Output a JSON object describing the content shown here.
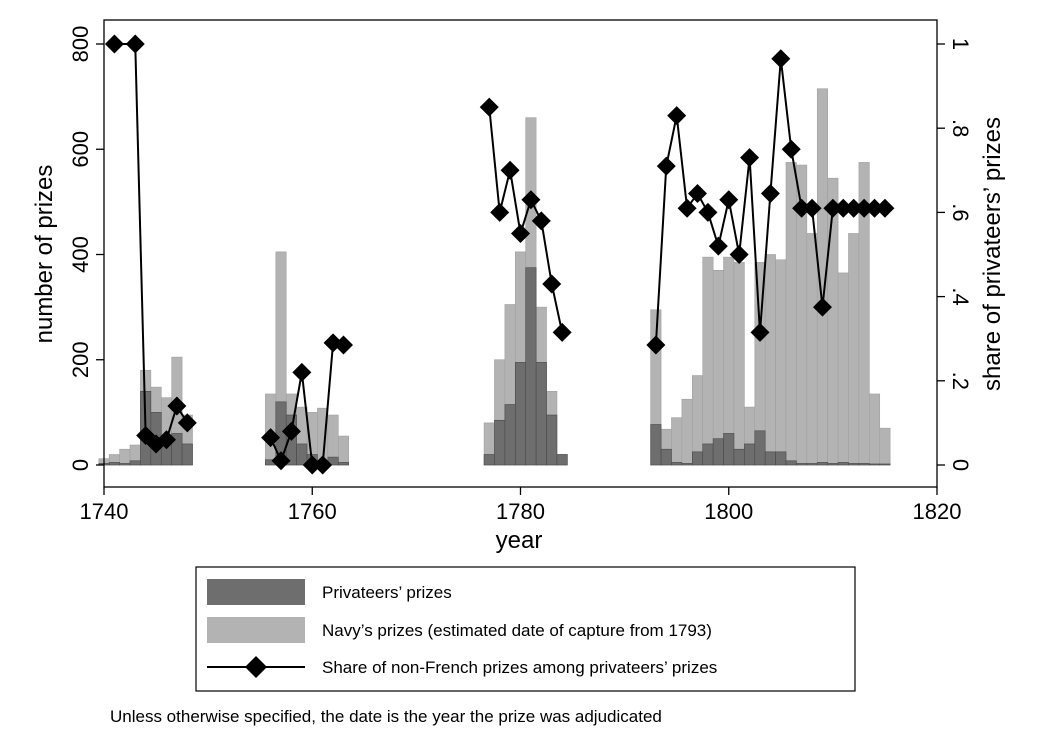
{
  "chart_data": {
    "type": "bar",
    "xlabel": "year",
    "ylabel": "number of prizes",
    "y2label": "share of privateers’ prizes",
    "xlim": [
      1740,
      1820
    ],
    "ylim": [
      0,
      800
    ],
    "y2lim": [
      0,
      1
    ],
    "xticks": [
      "1740",
      "1760",
      "1780",
      "1800",
      "1820"
    ],
    "yticks": [
      "0",
      "200",
      "400",
      "600",
      "800"
    ],
    "y2ticks": [
      "0",
      ".2",
      ".4",
      ".6",
      ".8",
      "1"
    ],
    "grid": false,
    "legend_position": "bottom",
    "series": [
      {
        "name": "Privateers’ prizes",
        "kind": "bar",
        "color": "#6e6e6e",
        "points": [
          [
            1740,
            3
          ],
          [
            1741,
            5
          ],
          [
            1742,
            3
          ],
          [
            1743,
            8
          ],
          [
            1744,
            140
          ],
          [
            1745,
            100
          ],
          [
            1746,
            55
          ],
          [
            1747,
            60
          ],
          [
            1748,
            40
          ],
          [
            1756,
            10
          ],
          [
            1757,
            120
          ],
          [
            1758,
            95
          ],
          [
            1759,
            40
          ],
          [
            1760,
            20
          ],
          [
            1761,
            5
          ],
          [
            1762,
            15
          ],
          [
            1763,
            5
          ],
          [
            1777,
            20
          ],
          [
            1778,
            85
          ],
          [
            1779,
            115
          ],
          [
            1780,
            195
          ],
          [
            1781,
            375
          ],
          [
            1782,
            195
          ],
          [
            1783,
            95
          ],
          [
            1784,
            20
          ],
          [
            1793,
            77
          ],
          [
            1794,
            30
          ],
          [
            1795,
            5
          ],
          [
            1796,
            3
          ],
          [
            1797,
            25
          ],
          [
            1798,
            40
          ],
          [
            1799,
            50
          ],
          [
            1800,
            60
          ],
          [
            1801,
            30
          ],
          [
            1802,
            40
          ],
          [
            1803,
            65
          ],
          [
            1804,
            25
          ],
          [
            1805,
            25
          ],
          [
            1806,
            8
          ],
          [
            1807,
            3
          ],
          [
            1808,
            3
          ],
          [
            1809,
            5
          ],
          [
            1810,
            3
          ],
          [
            1811,
            5
          ],
          [
            1812,
            3
          ],
          [
            1813,
            3
          ],
          [
            1814,
            2
          ],
          [
            1815,
            2
          ]
        ]
      },
      {
        "name": "Navy’s prizes (estimated date of capture from 1793)",
        "kind": "bar",
        "color": "#b3b3b3",
        "points": [
          [
            1740,
            12
          ],
          [
            1741,
            20
          ],
          [
            1742,
            30
          ],
          [
            1743,
            38
          ],
          [
            1744,
            180
          ],
          [
            1745,
            148
          ],
          [
            1746,
            128
          ],
          [
            1747,
            205
          ],
          [
            1748,
            95
          ],
          [
            1756,
            135
          ],
          [
            1757,
            405
          ],
          [
            1758,
            135
          ],
          [
            1759,
            110
          ],
          [
            1760,
            100
          ],
          [
            1761,
            108
          ],
          [
            1762,
            95
          ],
          [
            1763,
            55
          ],
          [
            1777,
            80
          ],
          [
            1778,
            200
          ],
          [
            1779,
            305
          ],
          [
            1780,
            405
          ],
          [
            1781,
            660
          ],
          [
            1782,
            300
          ],
          [
            1783,
            140
          ],
          [
            1784,
            20
          ],
          [
            1793,
            295
          ],
          [
            1794,
            68
          ],
          [
            1795,
            90
          ],
          [
            1796,
            125
          ],
          [
            1797,
            170
          ],
          [
            1798,
            395
          ],
          [
            1799,
            370
          ],
          [
            1800,
            395
          ],
          [
            1801,
            385
          ],
          [
            1802,
            110
          ],
          [
            1803,
            385
          ],
          [
            1804,
            400
          ],
          [
            1805,
            390
          ],
          [
            1806,
            575
          ],
          [
            1807,
            570
          ],
          [
            1808,
            440
          ],
          [
            1809,
            715
          ],
          [
            1810,
            545
          ],
          [
            1811,
            365
          ],
          [
            1812,
            440
          ],
          [
            1813,
            575
          ],
          [
            1814,
            135
          ],
          [
            1815,
            70
          ]
        ]
      },
      {
        "name": "Share of non-French prizes among privateers’ prizes",
        "kind": "line",
        "axis": "right",
        "color": "#000000",
        "marker": "diamond",
        "points": [
          [
            1741,
            1.0
          ],
          [
            1743,
            1.0
          ],
          [
            1744,
            0.07
          ],
          [
            1745,
            0.05
          ],
          [
            1746,
            0.06
          ],
          [
            1747,
            0.14
          ],
          [
            1748,
            0.1
          ],
          [
            1756,
            0.065
          ],
          [
            1757,
            0.01
          ],
          [
            1758,
            0.08
          ],
          [
            1759,
            0.22
          ],
          [
            1760,
            0.0
          ],
          [
            1761,
            0.0
          ],
          [
            1762,
            0.29
          ],
          [
            1763,
            0.285
          ],
          [
            1777,
            0.85
          ],
          [
            1778,
            0.6
          ],
          [
            1779,
            0.7
          ],
          [
            1780,
            0.55
          ],
          [
            1781,
            0.63
          ],
          [
            1782,
            0.58
          ],
          [
            1783,
            0.43
          ],
          [
            1784,
            0.315
          ],
          [
            1793,
            0.285
          ],
          [
            1794,
            0.71
          ],
          [
            1795,
            0.83
          ],
          [
            1796,
            0.61
          ],
          [
            1797,
            0.645
          ],
          [
            1798,
            0.6
          ],
          [
            1799,
            0.52
          ],
          [
            1800,
            0.63
          ],
          [
            1801,
            0.5
          ],
          [
            1802,
            0.73
          ],
          [
            1803,
            0.315
          ],
          [
            1804,
            0.645
          ],
          [
            1805,
            0.965
          ],
          [
            1806,
            0.75
          ],
          [
            1807,
            0.61
          ],
          [
            1808,
            0.61
          ],
          [
            1809,
            0.375
          ],
          [
            1810,
            0.61
          ],
          [
            1811,
            0.61
          ],
          [
            1812,
            0.61
          ],
          [
            1813,
            0.61
          ],
          [
            1814,
            0.61
          ],
          [
            1815,
            0.61
          ]
        ]
      }
    ],
    "note": "Unless otherwise specified, the date is the year the prize was adjudicated"
  }
}
